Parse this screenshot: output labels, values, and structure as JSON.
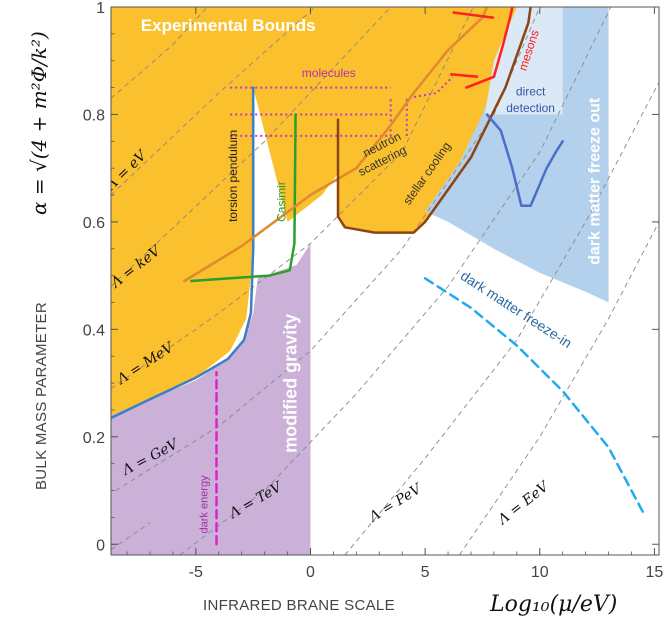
{
  "chart_data": {
    "type": "line",
    "xlim": [
      -8.7,
      15.2
    ],
    "ylim": [
      -0.02,
      1.0
    ],
    "x_ticks": [
      -5,
      0,
      5,
      10,
      15
    ],
    "x_tick_labels": [
      "-5",
      "0",
      "5",
      "10",
      "15"
    ],
    "y_ticks": [
      0,
      0.2,
      0.4,
      0.6,
      0.8,
      1
    ],
    "y_tick_labels": [
      "0",
      "0.2",
      "0.4",
      "0.6",
      "0.8",
      "1"
    ],
    "xlabel_prefix": "INFRARED BRANE SCALE",
    "xlabel_math": "Log₁₀(μ/eV)",
    "ylabel_prefix": "BULK MASS PARAMETER",
    "ylabel_math": "α = √(4 + m²Φ/k²)",
    "colors": {
      "experimental": "#fbc02d",
      "modified_gravity": "#cbb0d8",
      "freeze_out": "#b3d1ec",
      "direct_detection": "#dbe8f5",
      "torsion": "#3b7fc4",
      "casimir": "#2aa02a",
      "neutron": "#e0892f",
      "stellar": "#8b4513",
      "mesons": "#ff2020",
      "molecules": "#c23bbf",
      "dark_energy": "#e020d0",
      "freeze_in": "#22aaee",
      "direct_curve": "#4a6fc8",
      "scale_lines": "#888888"
    },
    "regions": [
      {
        "name": "Experimental Bounds",
        "points": [
          [
            -8.7,
            0.23
          ],
          [
            -7,
            0.265
          ],
          [
            -5,
            0.31
          ],
          [
            -3.5,
            0.36
          ],
          [
            -2.8,
            0.42
          ],
          [
            -2.6,
            0.5
          ],
          [
            -2.5,
            0.6
          ],
          [
            -2.5,
            0.85
          ],
          [
            -1,
            0.6
          ],
          [
            0.5,
            0.65
          ],
          [
            1.2,
            0.69
          ],
          [
            1.2,
            0.61
          ],
          [
            1.5,
            0.59
          ],
          [
            2.8,
            0.58
          ],
          [
            4.5,
            0.58
          ],
          [
            5,
            0.6
          ],
          [
            7,
            0.72
          ],
          [
            8.5,
            0.85
          ],
          [
            9.5,
            0.97
          ],
          [
            9.6,
            1.0
          ],
          [
            -8.7,
            1.0
          ]
        ]
      },
      {
        "name": "modified gravity",
        "points": [
          [
            -8.7,
            -0.02
          ],
          [
            0,
            -0.02
          ],
          [
            0,
            0.56
          ],
          [
            -0.6,
            0.52
          ],
          [
            -2.3,
            0.495
          ],
          [
            -2.5,
            0.43
          ],
          [
            -2.9,
            0.38
          ],
          [
            -3.6,
            0.345
          ],
          [
            -5,
            0.305
          ],
          [
            -7,
            0.27
          ],
          [
            -8.7,
            0.24
          ]
        ]
      },
      {
        "name": "dark matter freeze out",
        "points": [
          [
            5,
            0.62
          ],
          [
            6.5,
            0.71
          ],
          [
            7.5,
            0.8
          ],
          [
            8,
            0.86
          ],
          [
            8.5,
            0.9
          ],
          [
            9.3,
            1.0
          ],
          [
            13,
            1.0
          ],
          [
            13,
            0.45
          ],
          [
            12,
            0.47
          ],
          [
            10,
            0.505
          ],
          [
            8,
            0.55
          ],
          [
            6,
            0.6
          ]
        ]
      },
      {
        "name": "direct detection",
        "points": [
          [
            7.6,
            0.8
          ],
          [
            8,
            0.9
          ],
          [
            9,
            1.0
          ],
          [
            11,
            1.0
          ],
          [
            11,
            0.8
          ]
        ]
      }
    ],
    "series": [
      {
        "name": "torsion pendulum",
        "label": "torsion pendulum",
        "points": [
          [
            -8.7,
            0.235
          ],
          [
            -7,
            0.27
          ],
          [
            -5,
            0.31
          ],
          [
            -3.6,
            0.345
          ],
          [
            -2.9,
            0.38
          ],
          [
            -2.6,
            0.43
          ],
          [
            -2.5,
            0.55
          ],
          [
            -2.5,
            0.85
          ]
        ]
      },
      {
        "name": "Casimir",
        "label": "Casimir",
        "points": [
          [
            -5.2,
            0.49
          ],
          [
            -3.5,
            0.495
          ],
          [
            -1.8,
            0.5
          ],
          [
            -0.9,
            0.51
          ],
          [
            -0.7,
            0.56
          ],
          [
            -0.65,
            0.8
          ]
        ]
      },
      {
        "name": "neutron scattering",
        "label": "neutron scattering",
        "points": [
          [
            -5.5,
            0.49
          ],
          [
            -3,
            0.555
          ],
          [
            0,
            0.65
          ],
          [
            2,
            0.7
          ],
          [
            3.5,
            0.78
          ],
          [
            4.5,
            0.84
          ],
          [
            6,
            0.92
          ],
          [
            7.5,
            0.98
          ],
          [
            7.7,
            1.0
          ]
        ]
      },
      {
        "name": "stellar cooling",
        "label": "stellar cooling",
        "points": [
          [
            1.2,
            0.79
          ],
          [
            1.2,
            0.61
          ],
          [
            1.5,
            0.59
          ],
          [
            2.8,
            0.58
          ],
          [
            4.5,
            0.58
          ],
          [
            5,
            0.6
          ],
          [
            7,
            0.72
          ],
          [
            8.5,
            0.85
          ],
          [
            9.5,
            0.97
          ],
          [
            9.6,
            1.0
          ]
        ]
      },
      {
        "name": "mesons",
        "label": "mesons",
        "points": [
          [
            6.8,
            0.85
          ],
          [
            8,
            0.87
          ],
          [
            8.4,
            0.93
          ],
          [
            8.7,
            0.98
          ],
          [
            8.8,
            1.0
          ]
        ]
      },
      {
        "name": "direct detection",
        "label": "direct detection",
        "points": [
          [
            7.7,
            0.8
          ],
          [
            8.3,
            0.77
          ],
          [
            8.8,
            0.7
          ],
          [
            9.2,
            0.63
          ],
          [
            9.6,
            0.63
          ],
          [
            10,
            0.67
          ],
          [
            10.3,
            0.7
          ],
          [
            10.7,
            0.73
          ],
          [
            11,
            0.75
          ]
        ]
      },
      {
        "name": "dark energy",
        "label": "dark energy",
        "points": [
          [
            -4.1,
            0
          ],
          [
            -4.1,
            0.32
          ]
        ]
      },
      {
        "name": "dark matter freeze-in",
        "label": "dark matter freeze-in",
        "points": [
          [
            5,
            0.495
          ],
          [
            7,
            0.44
          ],
          [
            9,
            0.37
          ],
          [
            11,
            0.285
          ],
          [
            13,
            0.18
          ],
          [
            14.5,
            0.06
          ]
        ]
      }
    ],
    "meson_extra": [
      {
        "points": [
          [
            6.2,
            0.99
          ],
          [
            8,
            0.98
          ]
        ]
      },
      {
        "points": [
          [
            6.1,
            0.875
          ],
          [
            7.3,
            0.87
          ]
        ]
      }
    ],
    "molecule_lines": [
      {
        "points": [
          [
            -3.5,
            0.85
          ],
          [
            3.5,
            0.85
          ]
        ]
      },
      {
        "points": [
          [
            -3.5,
            0.8
          ],
          [
            3.4,
            0.8
          ]
        ]
      },
      {
        "points": [
          [
            -3.5,
            0.76
          ],
          [
            3.5,
            0.76
          ],
          [
            3.5,
            0.83
          ]
        ]
      },
      {
        "points": [
          [
            4.2,
            0.76
          ],
          [
            4.2,
            0.83
          ],
          [
            5.5,
            0.84
          ],
          [
            6.2,
            0.87
          ]
        ]
      }
    ],
    "scale_lines": [
      {
        "label": "Λ = eV",
        "points": [
          [
            -8.7,
            0.65
          ],
          [
            -4,
            0.84
          ],
          [
            0.2,
            1.0
          ]
        ]
      },
      {
        "label": "Λ = keV",
        "points": [
          [
            -8.7,
            0.48
          ],
          [
            -2,
            0.75
          ],
          [
            3.5,
            1.0
          ]
        ]
      },
      {
        "label": "Λ = MeV",
        "points": [
          [
            -8.7,
            0.29
          ],
          [
            -4,
            0.43
          ],
          [
            0,
            0.56
          ],
          [
            4,
            0.73
          ],
          [
            7.1,
            1.0
          ]
        ]
      },
      {
        "label": "Λ = GeV",
        "points": [
          [
            -8.5,
            0.1
          ],
          [
            -4,
            0.22
          ],
          [
            0,
            0.36
          ],
          [
            4,
            0.55
          ],
          [
            8,
            0.8
          ],
          [
            10,
            1.0
          ]
        ]
      },
      {
        "label": "Λ = TeV",
        "points": [
          [
            -5.7,
            -0.02
          ],
          [
            -2,
            0.1
          ],
          [
            2,
            0.28
          ],
          [
            6,
            0.48
          ],
          [
            10,
            0.73
          ],
          [
            13.1,
            1.0
          ]
        ]
      },
      {
        "label": "Λ = PeV",
        "points": [
          [
            1.5,
            -0.02
          ],
          [
            5,
            0.16
          ],
          [
            9,
            0.38
          ],
          [
            12,
            0.6
          ],
          [
            15.2,
            0.86
          ]
        ]
      },
      {
        "label": "Λ = EeV",
        "points": [
          [
            6.5,
            -0.02
          ],
          [
            10,
            0.2
          ],
          [
            13,
            0.42
          ],
          [
            15.2,
            0.6
          ]
        ]
      }
    ],
    "scale_lines_extra": [
      {
        "points": [
          [
            -8.7,
            0.83
          ],
          [
            -6,
            0.93
          ],
          [
            -4.5,
            1.0
          ]
        ]
      },
      {
        "points": [
          [
            -8.7,
            -0.01
          ],
          [
            -7,
            0.04
          ]
        ]
      }
    ],
    "annotations": [
      {
        "text": "Experimental Bounds",
        "x": -7.4,
        "y": 0.955,
        "rotate": 0,
        "color": "#ffffff",
        "size": 17,
        "bold": true,
        "anchor": "start",
        "style": "sans"
      },
      {
        "text": "modified gravity",
        "x": -0.6,
        "y": 0.17,
        "rotate": -90,
        "color": "#ffffff",
        "size": 18,
        "bold": true,
        "anchor": "start",
        "style": "sans"
      },
      {
        "text": "dark matter freeze out",
        "x": 12.6,
        "y": 0.52,
        "rotate": -90,
        "color": "#ffffff",
        "size": 16,
        "bold": true,
        "anchor": "start",
        "style": "sans"
      },
      {
        "text": "direct",
        "x": 9.6,
        "y": 0.835,
        "rotate": 0,
        "color": "#3355aa",
        "size": 12,
        "bold": false,
        "anchor": "middle",
        "style": "sans"
      },
      {
        "text": "detection",
        "x": 9.6,
        "y": 0.805,
        "rotate": 0,
        "color": "#3355aa",
        "size": 12,
        "bold": false,
        "anchor": "middle",
        "style": "sans"
      },
      {
        "text": "molecules",
        "x": 0.8,
        "y": 0.87,
        "rotate": 0,
        "color": "#b030b0",
        "size": 12,
        "bold": false,
        "anchor": "middle",
        "style": "sans"
      },
      {
        "text": "torsion pendulum",
        "x": -3.2,
        "y": 0.6,
        "rotate": -90,
        "color": "#222222",
        "size": 12,
        "bold": false,
        "anchor": "start",
        "style": "sans"
      },
      {
        "text": "Casimir",
        "x": -1.1,
        "y": 0.6,
        "rotate": -90,
        "color": "#2aa02a",
        "size": 12,
        "bold": false,
        "anchor": "start",
        "style": "sans"
      },
      {
        "text": "neutron",
        "x": 2.4,
        "y": 0.72,
        "rotate": -27,
        "color": "#333333",
        "size": 12,
        "bold": false,
        "anchor": "start",
        "style": "sans"
      },
      {
        "text": "scattering",
        "x": 2.2,
        "y": 0.685,
        "rotate": -27,
        "color": "#333333",
        "size": 12,
        "bold": false,
        "anchor": "start",
        "style": "sans"
      },
      {
        "text": "stellar cooling",
        "x": 4.3,
        "y": 0.63,
        "rotate": -55,
        "color": "#333333",
        "size": 12,
        "bold": false,
        "anchor": "start",
        "style": "sans"
      },
      {
        "text": "mesons",
        "x": 9.4,
        "y": 0.88,
        "rotate": -72,
        "color": "#ff2020",
        "size": 12,
        "bold": false,
        "anchor": "start",
        "style": "sans"
      },
      {
        "text": "dark matter freeze-in",
        "x": 6.5,
        "y": 0.495,
        "rotate": 33,
        "color": "#2a6aa0",
        "size": 14,
        "bold": false,
        "anchor": "start",
        "style": "sans"
      },
      {
        "text": "dark energy",
        "x": -4.5,
        "y": 0.02,
        "rotate": -90,
        "color": "#a030a0",
        "size": 11,
        "bold": false,
        "anchor": "start",
        "style": "sans"
      },
      {
        "text": "Λ = eV",
        "x": -7.9,
        "y": 0.69,
        "rotate": -44,
        "color": "#111111",
        "size": 14,
        "bold": false,
        "anchor": "middle",
        "style": "serif"
      },
      {
        "text": "Λ = keV",
        "x": -7.5,
        "y": 0.51,
        "rotate": -38,
        "color": "#111111",
        "size": 14,
        "bold": false,
        "anchor": "middle",
        "style": "serif"
      },
      {
        "text": "Λ = MeV",
        "x": -7.1,
        "y": 0.33,
        "rotate": -33,
        "color": "#111111",
        "size": 14,
        "bold": false,
        "anchor": "middle",
        "style": "serif"
      },
      {
        "text": "Λ = GeV",
        "x": -6.9,
        "y": 0.155,
        "rotate": -28,
        "color": "#111111",
        "size": 14,
        "bold": false,
        "anchor": "middle",
        "style": "serif"
      },
      {
        "text": "Λ = TeV",
        "x": -2.3,
        "y": 0.075,
        "rotate": -30,
        "color": "#111111",
        "size": 14,
        "bold": false,
        "anchor": "middle",
        "style": "serif"
      },
      {
        "text": "Λ = PeV",
        "x": 3.8,
        "y": 0.07,
        "rotate": -32,
        "color": "#111111",
        "size": 14,
        "bold": false,
        "anchor": "middle",
        "style": "serif"
      },
      {
        "text": "Λ = EeV",
        "x": 9.4,
        "y": 0.07,
        "rotate": -38,
        "color": "#111111",
        "size": 14,
        "bold": false,
        "anchor": "middle",
        "style": "serif"
      }
    ]
  }
}
